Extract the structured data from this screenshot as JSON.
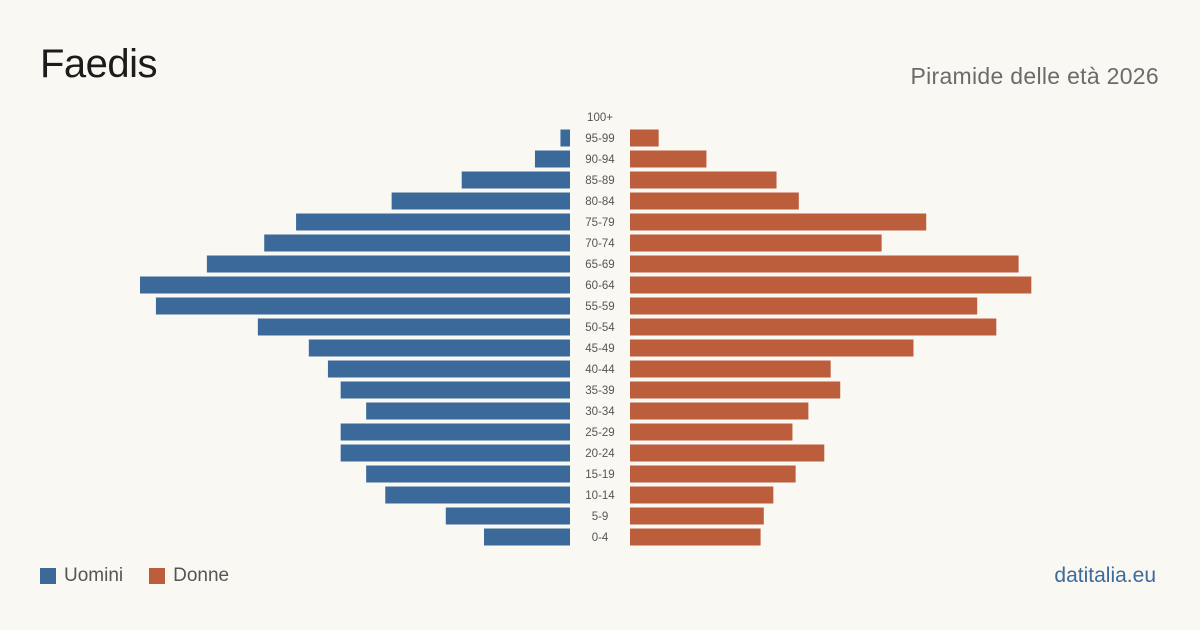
{
  "header": {
    "title": "Faedis",
    "subtitle": "Piramide delle età 2026"
  },
  "legend": {
    "men_label": "Uomini",
    "women_label": "Donne"
  },
  "footer": {
    "site": "datitalia.eu"
  },
  "colors": {
    "men": "#3b6a9a",
    "women": "#bc5d3c",
    "background": "#faf8f3"
  },
  "chart_data": {
    "type": "bar",
    "orientation": "horizontal-pyramid",
    "categories": [
      "100+",
      "95-99",
      "90-94",
      "85-89",
      "80-84",
      "75-79",
      "70-74",
      "65-69",
      "60-64",
      "55-59",
      "50-54",
      "45-49",
      "40-44",
      "35-39",
      "30-34",
      "25-29",
      "20-24",
      "15-19",
      "10-14",
      "5-9",
      "0-4"
    ],
    "series": [
      {
        "name": "Uomini",
        "values": [
          0,
          3,
          11,
          34,
          56,
          86,
          96,
          114,
          135,
          130,
          98,
          82,
          76,
          72,
          64,
          72,
          72,
          64,
          58,
          39,
          27
        ]
      },
      {
        "name": "Donne",
        "values": [
          0,
          9,
          24,
          46,
          53,
          93,
          79,
          122,
          126,
          109,
          115,
          89,
          63,
          66,
          56,
          51,
          61,
          52,
          45,
          42,
          41
        ]
      }
    ],
    "grid": false,
    "legend_position": "bottom-left"
  }
}
